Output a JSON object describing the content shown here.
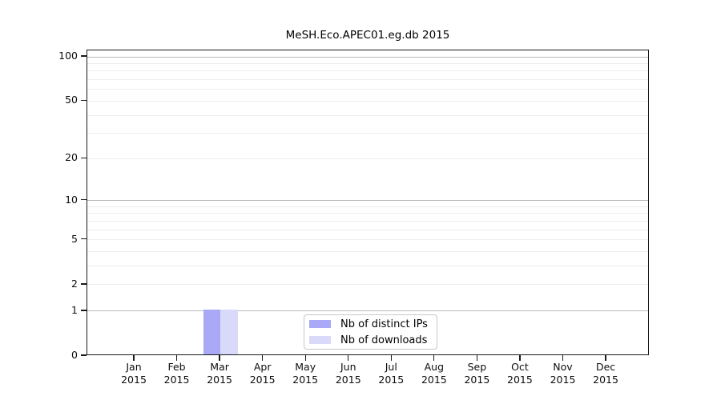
{
  "chart_data": {
    "type": "bar",
    "title": "MeSH.Eco.APEC01.eg.db 2015",
    "categories": [
      "Jan 2015",
      "Feb 2015",
      "Mar 2015",
      "Apr 2015",
      "May 2015",
      "Jun 2015",
      "Jul 2015",
      "Aug 2015",
      "Sep 2015",
      "Oct 2015",
      "Nov 2015",
      "Dec 2015"
    ],
    "series": [
      {
        "name": "Nb of distinct IPs",
        "color": "#a9a9f7",
        "values": [
          0,
          0,
          1,
          0,
          0,
          0,
          0,
          0,
          0,
          0,
          0,
          0
        ]
      },
      {
        "name": "Nb of downloads",
        "color": "#d9d9fa",
        "values": [
          0,
          0,
          1,
          0,
          0,
          0,
          0,
          0,
          0,
          0,
          0,
          0
        ]
      }
    ],
    "xlabel": "",
    "ylabel": "",
    "ylim": [
      0,
      100
    ],
    "y_scale": "log10(1+v)",
    "y_ticks": [
      0,
      1,
      2,
      5,
      10,
      20,
      50,
      100
    ],
    "y_minor_grid": [
      2,
      3,
      4,
      5,
      6,
      7,
      8,
      9,
      20,
      30,
      40,
      50,
      60,
      70,
      80,
      90
    ],
    "y_major_grid": [
      1,
      10,
      100
    ],
    "grid": "horizontal",
    "legend_position": "inside-bottom-center"
  },
  "colors": {
    "background": "#ffffff",
    "frame": "#1a1a1a",
    "grid_major": "#b8b8b8",
    "grid_minor": "#ededed",
    "tick": "#1a1a1a",
    "text": "#0d0d0d",
    "legend_border": "#c8c8c8"
  }
}
